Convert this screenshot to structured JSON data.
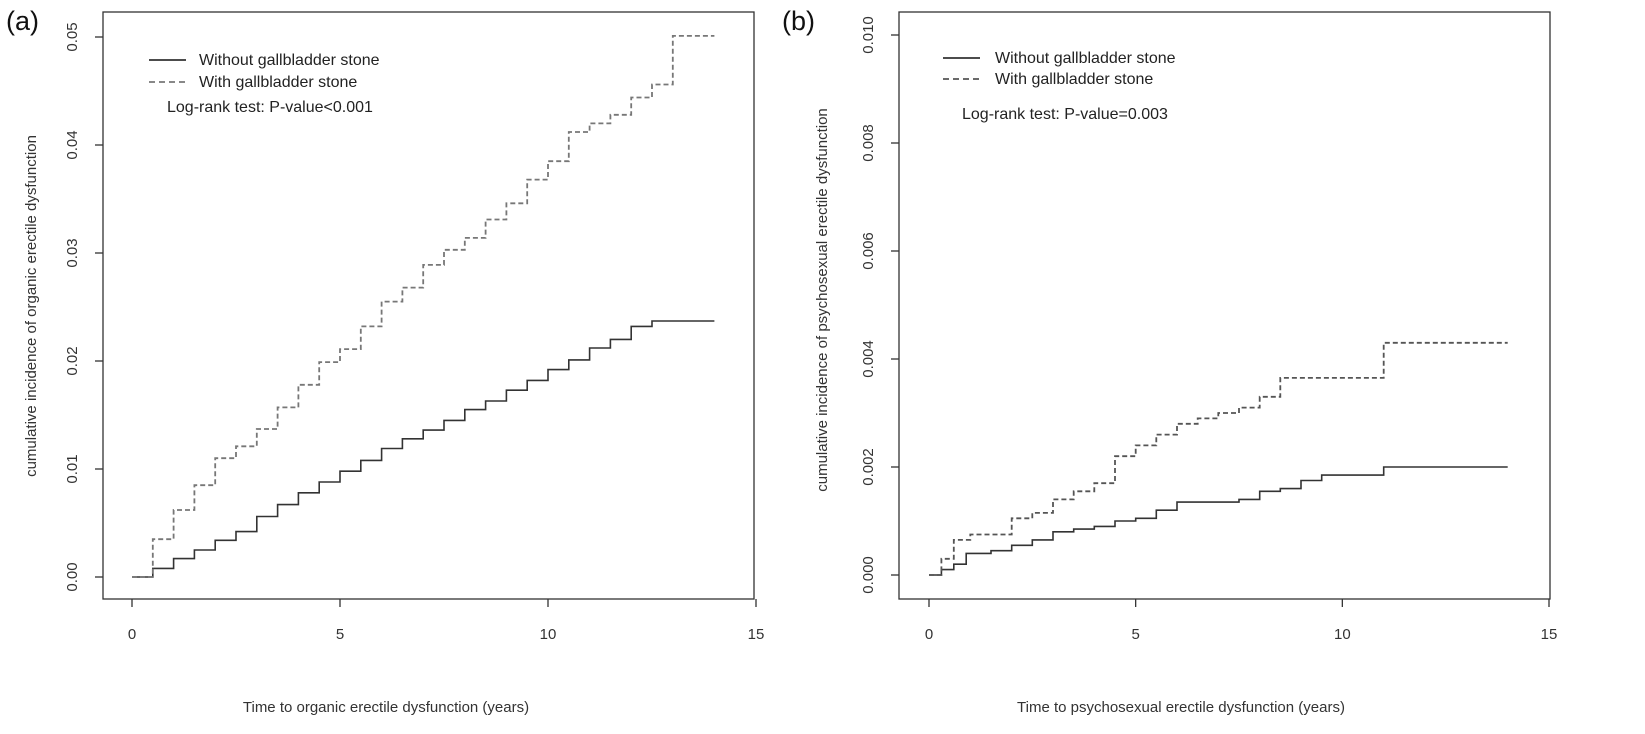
{
  "chart_data": [
    {
      "type": "line",
      "panel_label": "(a)",
      "xlabel": "Time to organic erectile dysfunction (years)",
      "ylabel": "cumulative incidence of organic erectile dysfunction",
      "xlim": [
        0,
        15
      ],
      "ylim": [
        0,
        0.05
      ],
      "x_ticks": [
        0,
        5,
        10,
        15
      ],
      "y_ticks": [
        0,
        0.01,
        0.02,
        0.03,
        0.04,
        0.05
      ],
      "x_tick_labels": [
        "0",
        "5",
        "10",
        "15"
      ],
      "y_tick_labels": [
        "0.00",
        "0.01",
        "0.02",
        "0.03",
        "0.04",
        "0.05"
      ],
      "grid": false,
      "legend_position": "top-left",
      "annotation": "Log-rank test: P-value<0.001",
      "series": [
        {
          "name": "Without gallbladder stone",
          "style": "solid",
          "color": "#333333",
          "x": [
            0,
            0.5,
            1,
            1.5,
            2,
            2.5,
            3,
            3.5,
            4,
            4.5,
            5,
            5.5,
            6,
            6.5,
            7,
            7.5,
            8,
            8.5,
            9,
            9.5,
            10,
            10.5,
            11,
            11.5,
            12,
            12.5,
            13,
            14
          ],
          "y": [
            0,
            0.0008,
            0.0017,
            0.0025,
            0.0034,
            0.0042,
            0.0056,
            0.0067,
            0.0078,
            0.0088,
            0.0098,
            0.0108,
            0.0119,
            0.0128,
            0.0136,
            0.0145,
            0.0155,
            0.0163,
            0.0173,
            0.0182,
            0.0192,
            0.0201,
            0.0212,
            0.022,
            0.0232,
            0.0237,
            0.0237,
            0.0237
          ]
        },
        {
          "name": "With gallbladder stone",
          "style": "dashed",
          "color": "#777777",
          "x": [
            0,
            0.5,
            1,
            1.5,
            2,
            2.5,
            3,
            3.5,
            4,
            4.5,
            5,
            5.5,
            6,
            6.5,
            7,
            7.5,
            8,
            8.5,
            9,
            9.5,
            10,
            10.5,
            11,
            11.5,
            12,
            12.5,
            13,
            14
          ],
          "y": [
            0,
            0.0035,
            0.0062,
            0.0085,
            0.011,
            0.0121,
            0.0137,
            0.0157,
            0.0178,
            0.0199,
            0.0211,
            0.0232,
            0.0255,
            0.0268,
            0.0289,
            0.0303,
            0.0314,
            0.0331,
            0.0346,
            0.0368,
            0.0385,
            0.0412,
            0.042,
            0.0428,
            0.0444,
            0.0456,
            0.0501,
            0.0501
          ]
        }
      ]
    },
    {
      "type": "line",
      "panel_label": "(b)",
      "xlabel": "Time to psychosexual erectile dysfunction (years)",
      "ylabel": "cumulative incidence of psychosexual erectile dysfunction",
      "xlim": [
        0,
        15
      ],
      "ylim": [
        0,
        0.01
      ],
      "x_ticks": [
        0,
        5,
        10,
        15
      ],
      "y_ticks": [
        0,
        0.002,
        0.004,
        0.006,
        0.008,
        0.01
      ],
      "x_tick_labels": [
        "0",
        "5",
        "10",
        "15"
      ],
      "y_tick_labels": [
        "0.000",
        "0.002",
        "0.004",
        "0.006",
        "0.008",
        "0.010"
      ],
      "grid": false,
      "legend_position": "top-left",
      "annotation": "Log-rank test: P-value=0.003",
      "series": [
        {
          "name": "Without gallbladder stone",
          "style": "solid",
          "color": "#333333",
          "x": [
            0,
            0.3,
            0.6,
            0.9,
            1.5,
            2,
            2.5,
            3,
            3.5,
            4,
            4.5,
            5,
            5.5,
            6,
            7,
            7.5,
            8,
            8.5,
            9,
            9.5,
            11,
            14
          ],
          "y": [
            0,
            0.0001,
            0.0002,
            0.0004,
            0.00045,
            0.00055,
            0.00065,
            0.0008,
            0.00085,
            0.0009,
            0.001,
            0.00105,
            0.0012,
            0.00135,
            0.00135,
            0.0014,
            0.00155,
            0.0016,
            0.00175,
            0.00185,
            0.002,
            0.002
          ]
        },
        {
          "name": "With gallbladder stone",
          "style": "dashed",
          "color": "#555555",
          "x": [
            0,
            0.3,
            0.6,
            1,
            1.5,
            2,
            2.5,
            3,
            3.5,
            4,
            4.5,
            5,
            5.5,
            6,
            6.5,
            7,
            7.5,
            8,
            8.5,
            11,
            14
          ],
          "y": [
            0,
            0.0003,
            0.00065,
            0.00075,
            0.00075,
            0.00105,
            0.00115,
            0.0014,
            0.00155,
            0.0017,
            0.0022,
            0.0024,
            0.0026,
            0.0028,
            0.0029,
            0.003,
            0.0031,
            0.0033,
            0.00365,
            0.0043,
            0.0043
          ]
        }
      ]
    }
  ]
}
